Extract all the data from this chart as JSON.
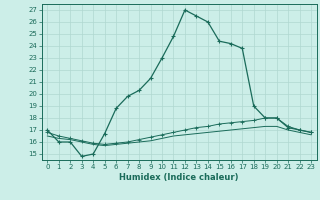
{
  "xlabel": "Humidex (Indice chaleur)",
  "bg_color": "#cceee8",
  "line_color": "#1a6b5a",
  "grid_color": "#b0d8d0",
  "xlim": [
    -0.5,
    23.5
  ],
  "ylim": [
    14.5,
    27.5
  ],
  "yticks": [
    15,
    16,
    17,
    18,
    19,
    20,
    21,
    22,
    23,
    24,
    25,
    26,
    27
  ],
  "xticks": [
    0,
    1,
    2,
    3,
    4,
    5,
    6,
    7,
    8,
    9,
    10,
    11,
    12,
    13,
    14,
    15,
    16,
    17,
    18,
    19,
    20,
    21,
    22,
    23
  ],
  "line1_x": [
    0,
    1,
    2,
    3,
    4,
    5,
    6,
    7,
    8,
    9,
    10,
    11,
    12,
    13,
    14,
    15,
    16,
    17,
    18,
    19,
    20,
    21,
    22,
    23
  ],
  "line1_y": [
    17.0,
    16.0,
    16.0,
    14.8,
    15.0,
    16.7,
    18.8,
    19.8,
    20.3,
    21.3,
    23.0,
    24.8,
    27.0,
    26.5,
    26.0,
    24.4,
    24.2,
    23.8,
    19.0,
    18.0,
    18.0,
    17.2,
    17.0,
    16.8
  ],
  "line2_x": [
    0,
    1,
    2,
    3,
    4,
    5,
    6,
    7,
    8,
    9,
    10,
    11,
    12,
    13,
    14,
    15,
    16,
    17,
    18,
    19,
    20,
    21,
    22,
    23
  ],
  "line2_y": [
    16.8,
    16.5,
    16.3,
    16.1,
    15.9,
    15.8,
    15.9,
    16.0,
    16.2,
    16.4,
    16.6,
    16.8,
    17.0,
    17.2,
    17.3,
    17.5,
    17.6,
    17.7,
    17.8,
    18.0,
    18.0,
    17.3,
    17.0,
    16.8
  ],
  "line3_x": [
    0,
    1,
    2,
    3,
    4,
    5,
    6,
    7,
    8,
    9,
    10,
    11,
    12,
    13,
    14,
    15,
    16,
    17,
    18,
    19,
    20,
    21,
    22,
    23
  ],
  "line3_y": [
    16.5,
    16.3,
    16.2,
    16.0,
    15.8,
    15.7,
    15.8,
    15.9,
    16.0,
    16.1,
    16.3,
    16.5,
    16.6,
    16.7,
    16.8,
    16.9,
    17.0,
    17.1,
    17.2,
    17.3,
    17.3,
    17.0,
    16.8,
    16.6
  ]
}
